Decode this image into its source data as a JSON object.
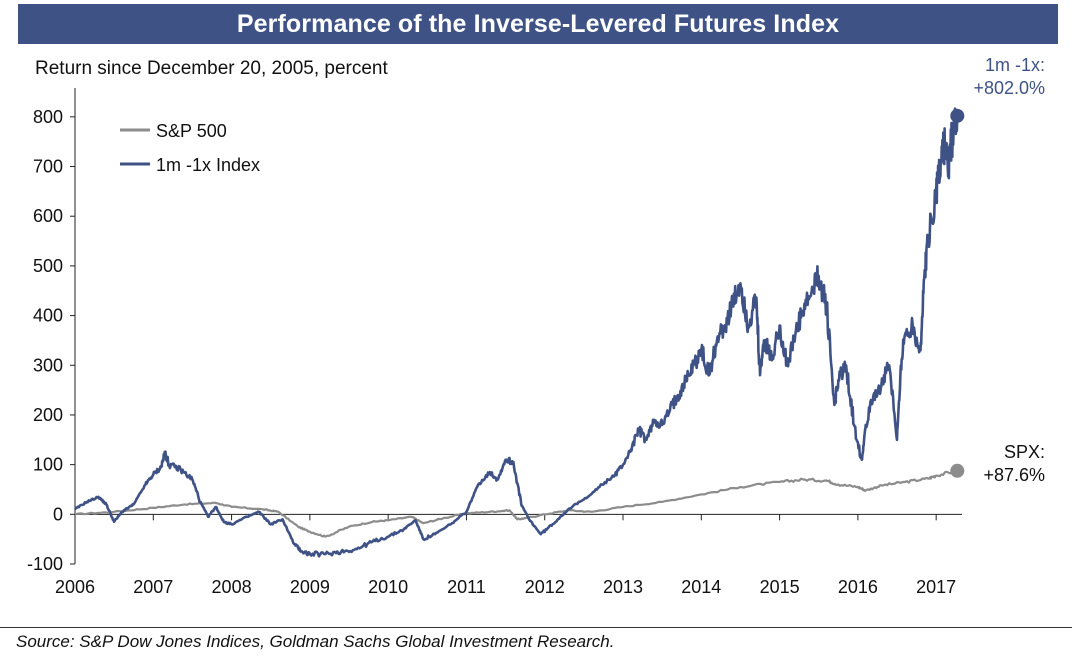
{
  "chart_data": {
    "type": "line",
    "title": "Performance of the Inverse-Levered Futures Index",
    "ylabel": "Return since December 20, 2005, percent",
    "xlabel": "",
    "xlim": [
      2006,
      2017.33
    ],
    "ylim": [
      -100,
      850
    ],
    "x_ticks": [
      2006,
      2007,
      2008,
      2009,
      2010,
      2011,
      2012,
      2013,
      2014,
      2015,
      2016,
      2017
    ],
    "y_ticks": [
      -100,
      0,
      100,
      200,
      300,
      400,
      500,
      600,
      700,
      800
    ],
    "legend": {
      "position": "top-left",
      "entries": [
        "S&P 500",
        "1m -1x Index"
      ]
    },
    "series": [
      {
        "name": "S&P 500",
        "color": "#8c8c8c",
        "x": [
          2006.0,
          2006.5,
          2007.0,
          2007.4,
          2007.8,
          2008.0,
          2008.4,
          2008.6,
          2008.85,
          2009.0,
          2009.2,
          2009.5,
          2009.8,
          2010.0,
          2010.3,
          2010.45,
          2010.7,
          2011.0,
          2011.3,
          2011.55,
          2011.65,
          2011.75,
          2012.0,
          2012.3,
          2012.6,
          2013.0,
          2013.5,
          2014.0,
          2014.5,
          2015.0,
          2015.3,
          2015.6,
          2015.75,
          2016.0,
          2016.1,
          2016.3,
          2016.6,
          2016.9,
          2017.0,
          2017.27
        ],
        "values": [
          0,
          5,
          13,
          20,
          23,
          15,
          10,
          5,
          -25,
          -35,
          -45,
          -25,
          -15,
          -12,
          -5,
          -18,
          -8,
          2,
          5,
          8,
          -10,
          -8,
          0,
          8,
          5,
          15,
          25,
          40,
          55,
          65,
          70,
          68,
          60,
          55,
          48,
          58,
          65,
          72,
          78,
          87.6
        ],
        "end_label": "SPX:\n+87.6%"
      },
      {
        "name": "1m -1x Index",
        "color": "#3f5286",
        "x": [
          2006.0,
          2006.15,
          2006.3,
          2006.4,
          2006.5,
          2006.6,
          2006.75,
          2006.9,
          2007.0,
          2007.1,
          2007.15,
          2007.2,
          2007.35,
          2007.5,
          2007.6,
          2007.7,
          2007.8,
          2007.9,
          2008.0,
          2008.2,
          2008.35,
          2008.5,
          2008.65,
          2008.8,
          2008.9,
          2009.0,
          2009.2,
          2009.4,
          2009.6,
          2009.8,
          2010.0,
          2010.2,
          2010.35,
          2010.45,
          2010.6,
          2010.8,
          2011.0,
          2011.15,
          2011.3,
          2011.4,
          2011.5,
          2011.6,
          2011.7,
          2011.8,
          2011.95,
          2012.1,
          2012.3,
          2012.5,
          2012.7,
          2012.9,
          2013.0,
          2013.1,
          2013.2,
          2013.3,
          2013.4,
          2013.5,
          2013.6,
          2013.7,
          2013.8,
          2013.9,
          2014.0,
          2014.1,
          2014.2,
          2014.3,
          2014.4,
          2014.5,
          2014.6,
          2014.7,
          2014.75,
          2014.8,
          2014.9,
          2015.0,
          2015.1,
          2015.2,
          2015.3,
          2015.4,
          2015.5,
          2015.6,
          2015.7,
          2015.75,
          2015.85,
          2015.95,
          2016.05,
          2016.1,
          2016.2,
          2016.3,
          2016.4,
          2016.5,
          2016.55,
          2016.6,
          2016.7,
          2016.8,
          2016.85,
          2016.9,
          2017.0,
          2017.05,
          2017.1,
          2017.15,
          2017.2,
          2017.27
        ],
        "values": [
          10,
          25,
          35,
          20,
          -15,
          5,
          20,
          60,
          80,
          95,
          125,
          100,
          90,
          70,
          25,
          -5,
          15,
          -15,
          -20,
          -5,
          5,
          -20,
          -10,
          -60,
          -75,
          -80,
          -80,
          -75,
          -70,
          -55,
          -45,
          -30,
          -12,
          -50,
          -40,
          -20,
          5,
          60,
          85,
          70,
          110,
          105,
          20,
          -10,
          -40,
          -20,
          10,
          30,
          55,
          80,
          100,
          130,
          170,
          150,
          190,
          180,
          210,
          240,
          270,
          300,
          330,
          280,
          350,
          380,
          420,
          465,
          380,
          430,
          280,
          350,
          310,
          380,
          300,
          360,
          410,
          440,
          480,
          420,
          220,
          270,
          300,
          180,
          110,
          180,
          240,
          260,
          300,
          150,
          300,
          360,
          380,
          330,
          480,
          560,
          650,
          700,
          750,
          690,
          760,
          802
        ],
        "end_label": "1m -1x:\n+802.0%"
      }
    ]
  },
  "source": "Source: S&P Dow Jones Indices, Goldman Sachs Global Investment Research."
}
